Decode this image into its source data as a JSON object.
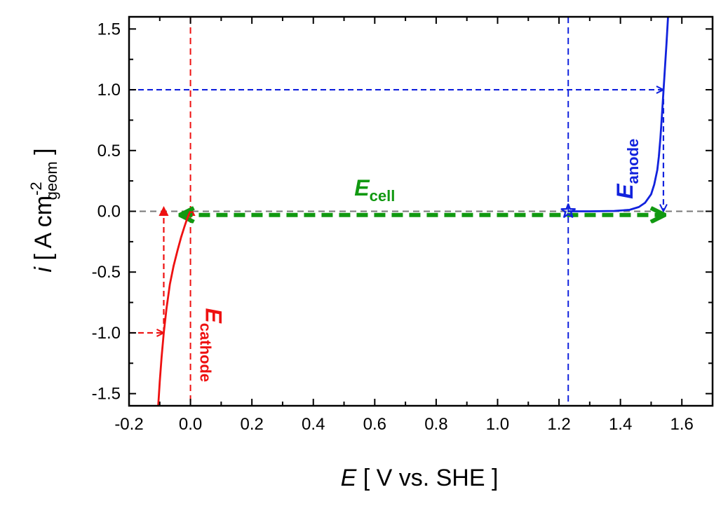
{
  "chart_data": {
    "type": "line",
    "title": "",
    "xlabel": {
      "italic": "E",
      "rest": " [ V vs. SHE ]"
    },
    "ylabel": {
      "italic": "i",
      "pre": " [ A cm",
      "sup": "-2",
      "sub": "geom",
      "post": " ]"
    },
    "xlim": [
      -0.2,
      1.7
    ],
    "ylim": [
      -1.6,
      1.6
    ],
    "xticks": [
      -0.2,
      0.0,
      0.2,
      0.4,
      0.6,
      0.8,
      1.0,
      1.2,
      1.4,
      1.6
    ],
    "xtick_labels": [
      "-0.2",
      "0.0",
      "0.2",
      "0.4",
      "0.6",
      "0.8",
      "1.0",
      "1.2",
      "1.4",
      "1.6"
    ],
    "yticks": [
      -1.5,
      -1.0,
      -0.5,
      0.0,
      0.5,
      1.0,
      1.5
    ],
    "ytick_labels": [
      "-1.5",
      "-1.0",
      "-0.5",
      "0.0",
      "0.5",
      "1.0",
      "1.5"
    ],
    "grid": false,
    "legend": "none",
    "series": [
      {
        "color": "#ee1111",
        "style": "solid",
        "x": [
          -0.105,
          -0.1,
          -0.094,
          -0.087,
          -0.078,
          -0.067,
          -0.055,
          -0.042,
          -0.03,
          -0.02,
          -0.012,
          -0.006,
          -0.002,
          0.0
        ],
        "y": [
          -1.6,
          -1.4,
          -1.2,
          -1.0,
          -0.8,
          -0.6,
          -0.45,
          -0.32,
          -0.21,
          -0.13,
          -0.07,
          -0.03,
          -0.01,
          0.0
        ]
      },
      {
        "color": "#1122dd",
        "style": "solid",
        "x": [
          1.23,
          1.3,
          1.38,
          1.43,
          1.46,
          1.48,
          1.5,
          1.51,
          1.52,
          1.525,
          1.53,
          1.535,
          1.54,
          1.545,
          1.55,
          1.555
        ],
        "y": [
          0.0,
          0.0,
          0.003,
          0.012,
          0.035,
          0.07,
          0.14,
          0.22,
          0.34,
          0.45,
          0.6,
          0.78,
          0.98,
          1.18,
          1.38,
          1.6
        ]
      }
    ],
    "reference_lines": [
      {
        "orientation": "horizontal",
        "value": 0.0,
        "color": "#777777",
        "style": "dashed"
      },
      {
        "orientation": "vertical",
        "value": 0.0,
        "color": "#ee1111",
        "style": "dashed"
      },
      {
        "orientation": "vertical",
        "value": 1.23,
        "color": "#1122dd",
        "style": "dashed"
      }
    ],
    "arrows": [
      {
        "color": "#1122dd",
        "from": [
          -0.2,
          1.0
        ],
        "to": [
          1.54,
          1.0
        ],
        "style": "dashed",
        "head": "open"
      },
      {
        "color": "#1122dd",
        "from": [
          1.54,
          1.0
        ],
        "to": [
          1.54,
          0.0
        ],
        "style": "dashed",
        "head": "open"
      },
      {
        "color": "#ee1111",
        "from": [
          -0.2,
          -1.0
        ],
        "to": [
          -0.087,
          -1.0
        ],
        "style": "dashed",
        "head": "open"
      },
      {
        "color": "#ee1111",
        "from": [
          -0.087,
          -1.0
        ],
        "to": [
          -0.087,
          0.03
        ],
        "style": "dashed",
        "head": "filled"
      },
      {
        "color": "#ee1111",
        "from": [
          0.0,
          -0.03
        ],
        "to": [
          0.0,
          0.03
        ],
        "style": "solid",
        "head": "filled"
      },
      {
        "color": "#119911",
        "from": [
          -0.03,
          -0.03
        ],
        "to": [
          1.54,
          -0.03
        ],
        "style": "dashed",
        "head": "both"
      }
    ],
    "markers": [
      {
        "shape": "star",
        "x": 1.23,
        "y": 0.0,
        "color": "#1122dd"
      }
    ],
    "annotations": [
      {
        "name": "E-cell",
        "main": "E",
        "sub": "cell",
        "color": "#119911",
        "x": 0.6,
        "y": 0.13,
        "rotate": 0
      },
      {
        "name": "E-anode",
        "main": "E",
        "sub": "anode",
        "color": "#1122dd",
        "x": 1.44,
        "y": 0.35,
        "rotate": -90
      },
      {
        "name": "E-cathode",
        "main": "E",
        "sub": "cathode",
        "color": "#ee1111",
        "x": 0.05,
        "y": -1.1,
        "rotate": 90
      }
    ]
  }
}
